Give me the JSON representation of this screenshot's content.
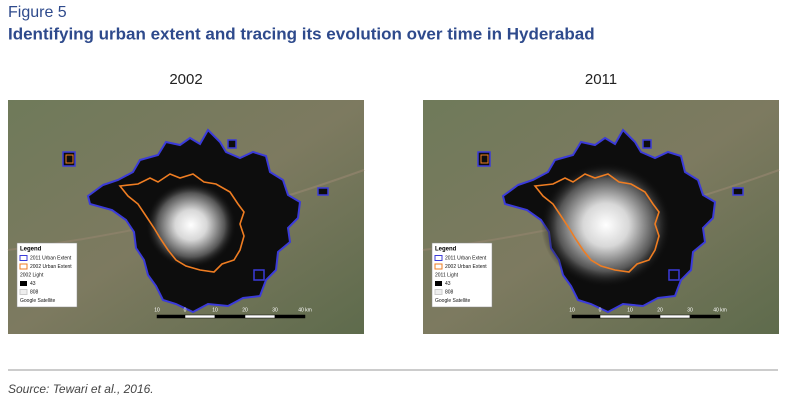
{
  "figure_label": "Figure 5",
  "title": "Identifying urban extent and tracing its evolution over time in Hyderabad",
  "panels": [
    {
      "title": "2002",
      "legend": {
        "heading": "Legend",
        "items": [
          "2011 Urban Extent",
          "2002 Urban Extent",
          "2002 Light",
          "43",
          "808",
          "Google Satellite"
        ]
      },
      "scale": [
        "10",
        "0",
        "10",
        "20",
        "30",
        "40 km"
      ]
    },
    {
      "title": "2011",
      "legend": {
        "heading": "Legend",
        "items": [
          "2011 Urban Extent",
          "2002 Urban Extent",
          "2011 Light",
          "43",
          "808",
          "Google Satellite"
        ]
      },
      "scale": [
        "10",
        "0",
        "10",
        "20",
        "30",
        "40 km"
      ]
    }
  ],
  "source": "Source: Tewari et al., 2016."
}
